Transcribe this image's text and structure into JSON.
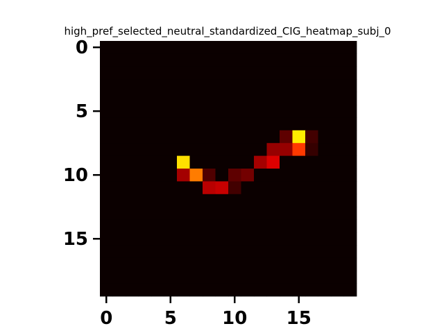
{
  "chart_data": {
    "type": "heatmap",
    "title": "high_pref_selected_neutral_standardized_CIG_heatmap_subj_0",
    "xlabel": "",
    "ylabel": "",
    "xlim": [
      -0.5,
      19.5
    ],
    "ylim": [
      19.5,
      -0.5
    ],
    "x_ticks": [
      0,
      5,
      10,
      15
    ],
    "y_ticks": [
      0,
      5,
      10,
      15
    ],
    "grid": false,
    "rows": 20,
    "cols": 20,
    "colormap": "hot",
    "background_value": 0.0,
    "cells": [
      {
        "row": 7,
        "col": 14,
        "value": 0.12
      },
      {
        "row": 7,
        "col": 15,
        "value": 0.72
      },
      {
        "row": 7,
        "col": 16,
        "value": 0.08
      },
      {
        "row": 8,
        "col": 13,
        "value": 0.2
      },
      {
        "row": 8,
        "col": 14,
        "value": 0.2
      },
      {
        "row": 8,
        "col": 15,
        "value": 0.45
      },
      {
        "row": 8,
        "col": 16,
        "value": 0.06
      },
      {
        "row": 9,
        "col": 6,
        "value": 0.7
      },
      {
        "row": 9,
        "col": 12,
        "value": 0.22
      },
      {
        "row": 9,
        "col": 13,
        "value": 0.3
      },
      {
        "row": 10,
        "col": 6,
        "value": 0.22
      },
      {
        "row": 10,
        "col": 7,
        "value": 0.55
      },
      {
        "row": 10,
        "col": 8,
        "value": 0.1
      },
      {
        "row": 10,
        "col": 10,
        "value": 0.12
      },
      {
        "row": 10,
        "col": 11,
        "value": 0.15
      },
      {
        "row": 11,
        "col": 8,
        "value": 0.25
      },
      {
        "row": 11,
        "col": 9,
        "value": 0.27
      },
      {
        "row": 11,
        "col": 10,
        "value": 0.08
      }
    ]
  }
}
